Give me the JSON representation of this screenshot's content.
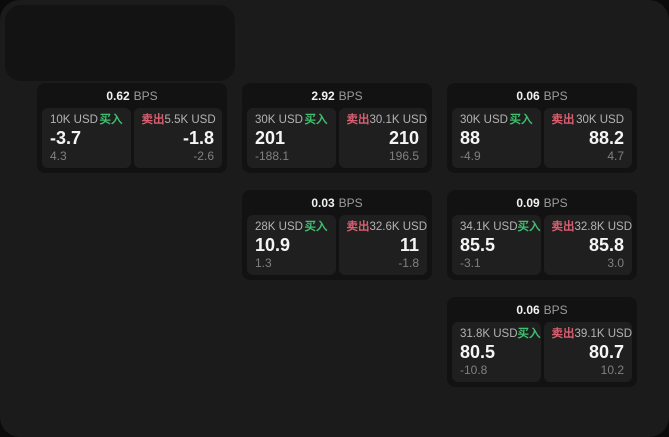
{
  "labels": {
    "buy": "买入",
    "sell": "卖出",
    "bps_unit": "BPS"
  },
  "colors": {
    "backdrop": "#0b0b0b",
    "surface": "#1b1b1b",
    "card_bg": "#121212",
    "pane_bg": "#1f1f1f",
    "buy_green": "#3fbf6f",
    "sell_red": "#d95f70"
  },
  "cards": [
    {
      "bps": "0.62",
      "buy": {
        "amount": "10K USD",
        "price": "-3.7",
        "change": "4.3"
      },
      "sell": {
        "amount": "5.5K USD",
        "price": "-1.8",
        "change": "-2.6"
      }
    },
    {
      "bps": "2.92",
      "buy": {
        "amount": "30K USD",
        "price": "201",
        "change": "-188.1"
      },
      "sell": {
        "amount": "30.1K USD",
        "price": "210",
        "change": "196.5"
      }
    },
    {
      "bps": "0.03",
      "buy": {
        "amount": "28K USD",
        "price": "10.9",
        "change": "1.3"
      },
      "sell": {
        "amount": "32.6K USD",
        "price": "11",
        "change": "-1.8"
      }
    },
    {
      "bps": "0.06",
      "buy": {
        "amount": "30K USD",
        "price": "88",
        "change": "-4.9"
      },
      "sell": {
        "amount": "30K USD",
        "price": "88.2",
        "change": "4.7"
      }
    },
    {
      "bps": "0.09",
      "buy": {
        "amount": "34.1K USD",
        "price": "85.5",
        "change": "-3.1"
      },
      "sell": {
        "amount": "32.8K USD",
        "price": "85.8",
        "change": "3.0"
      }
    },
    {
      "bps": "0.06",
      "buy": {
        "amount": "31.8K USD",
        "price": "80.5",
        "change": "-10.8"
      },
      "sell": {
        "amount": "39.1K USD",
        "price": "80.7",
        "change": "10.2"
      }
    }
  ]
}
